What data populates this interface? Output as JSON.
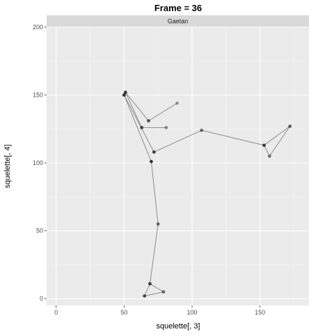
{
  "chart_data": {
    "type": "scatter",
    "title": "Frame = 36",
    "facet_label": "Gaetan",
    "xlabel": "squelette[, 3]",
    "ylabel": "squelette[, 4]",
    "xlim": [
      -7,
      186
    ],
    "ylim": [
      -5,
      200
    ],
    "x_ticks": [
      0,
      50,
      100,
      150
    ],
    "x_tick_labels": [
      "0",
      "50",
      "100",
      "150"
    ],
    "y_ticks": [
      0,
      50,
      100,
      150,
      200
    ],
    "y_tick_labels": [
      "0",
      "50",
      "100",
      "150",
      "200"
    ],
    "grid": true,
    "points": [
      {
        "x": 51,
        "y": 152,
        "shade": 0.85
      },
      {
        "x": 50,
        "y": 150,
        "shade": 0.9
      },
      {
        "x": 68,
        "y": 131,
        "shade": 0.7
      },
      {
        "x": 89,
        "y": 144,
        "shade": 0.4
      },
      {
        "x": 63,
        "y": 126,
        "shade": 0.75
      },
      {
        "x": 81,
        "y": 126,
        "shade": 0.45
      },
      {
        "x": 72,
        "y": 108,
        "shade": 0.8
      },
      {
        "x": 70,
        "y": 101,
        "shade": 0.85
      },
      {
        "x": 107,
        "y": 124,
        "shade": 0.6
      },
      {
        "x": 153,
        "y": 113,
        "shade": 0.8
      },
      {
        "x": 172,
        "y": 127,
        "shade": 0.65
      },
      {
        "x": 157,
        "y": 105,
        "shade": 0.55
      },
      {
        "x": 75,
        "y": 55,
        "shade": 0.6
      },
      {
        "x": 69,
        "y": 11,
        "shade": 0.8
      },
      {
        "x": 79,
        "y": 5,
        "shade": 0.6
      },
      {
        "x": 65,
        "y": 2,
        "shade": 0.75
      }
    ],
    "segments": [
      [
        [
          51,
          152
        ],
        [
          68,
          131
        ]
      ],
      [
        [
          68,
          131
        ],
        [
          89,
          144
        ]
      ],
      [
        [
          51,
          152
        ],
        [
          63,
          126
        ]
      ],
      [
        [
          63,
          126
        ],
        [
          81,
          126
        ]
      ],
      [
        [
          50,
          150
        ],
        [
          72,
          108
        ]
      ],
      [
        [
          72,
          108
        ],
        [
          107,
          124
        ]
      ],
      [
        [
          107,
          124
        ],
        [
          153,
          113
        ]
      ],
      [
        [
          153,
          113
        ],
        [
          172,
          127
        ]
      ],
      [
        [
          172,
          127
        ],
        [
          157,
          105
        ]
      ],
      [
        [
          157,
          105
        ],
        [
          153,
          113
        ]
      ],
      [
        [
          50,
          150
        ],
        [
          70,
          101
        ]
      ],
      [
        [
          70,
          101
        ],
        [
          75,
          55
        ]
      ],
      [
        [
          75,
          55
        ],
        [
          69,
          11
        ]
      ],
      [
        [
          69,
          11
        ],
        [
          79,
          5
        ]
      ],
      [
        [
          79,
          5
        ],
        [
          65,
          2
        ]
      ],
      [
        [
          65,
          2
        ],
        [
          69,
          11
        ]
      ]
    ]
  }
}
